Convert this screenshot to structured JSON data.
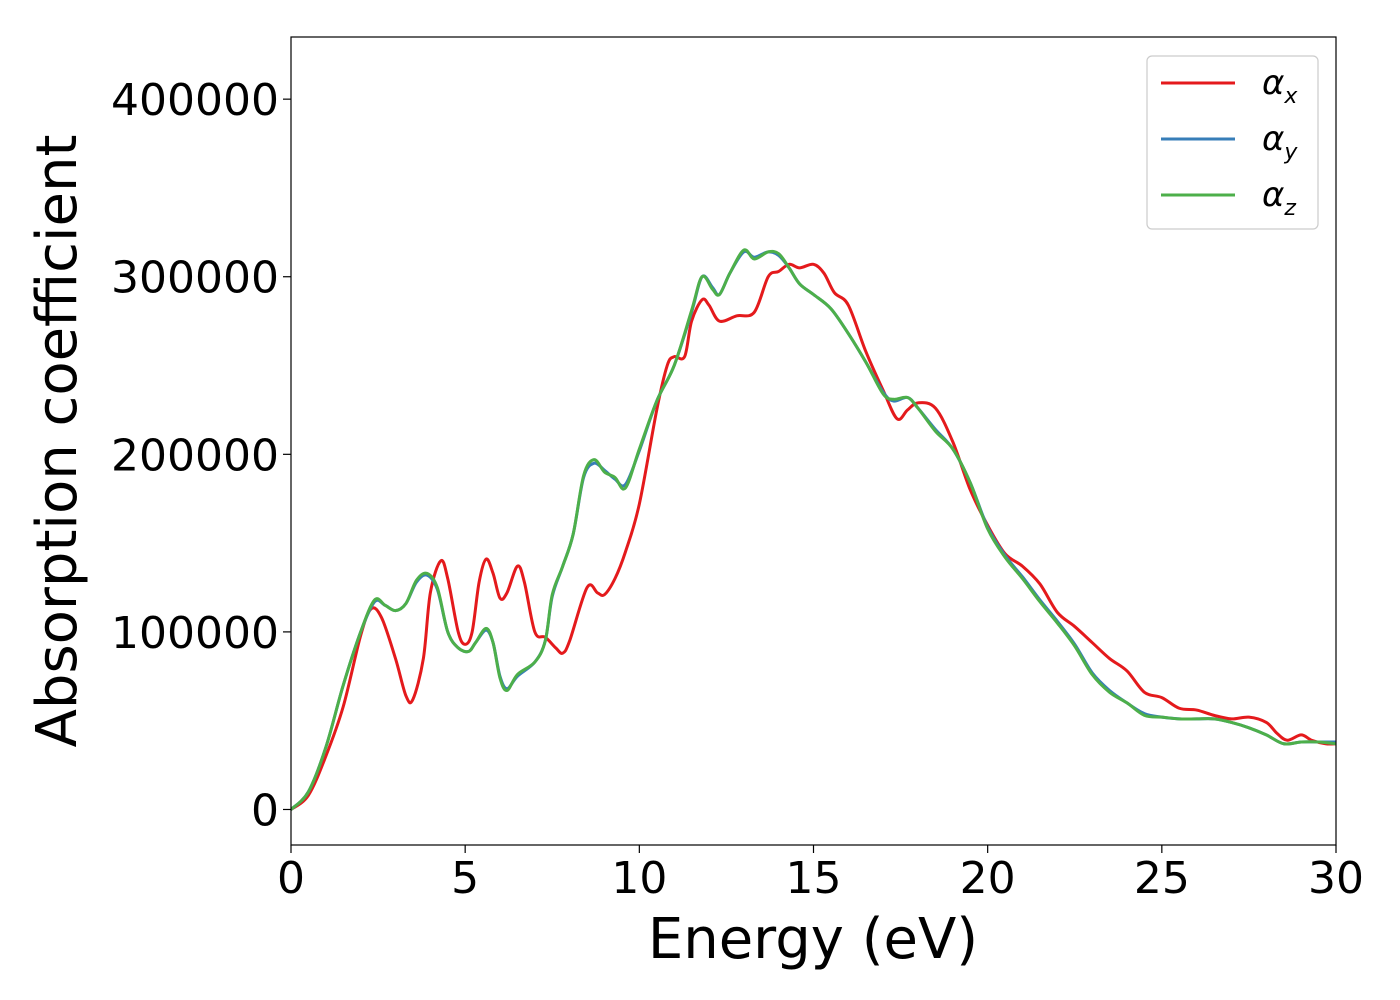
{
  "chart_data": {
    "type": "line",
    "title": "",
    "xlabel": "Energy (eV)",
    "ylabel": "Absorption coefficient",
    "xlim": [
      0,
      30
    ],
    "ylim": [
      -20000,
      435000
    ],
    "x_ticks": [
      0,
      5,
      10,
      15,
      20,
      25,
      30
    ],
    "y_ticks": [
      0,
      100000,
      200000,
      300000,
      400000
    ],
    "x_tick_labels": [
      "0",
      "5",
      "10",
      "15",
      "20",
      "25",
      "30"
    ],
    "y_tick_labels": [
      "0",
      "100000",
      "200000",
      "300000",
      "400000"
    ],
    "grid": false,
    "legend_position": "top-right",
    "series": [
      {
        "name": "x",
        "color": "#e41a1c",
        "points": [
          [
            0,
            0
          ],
          [
            0.5,
            8000
          ],
          [
            1,
            30000
          ],
          [
            1.5,
            58000
          ],
          [
            2,
            98000
          ],
          [
            2.3,
            113000
          ],
          [
            2.6,
            108000
          ],
          [
            3,
            85000
          ],
          [
            3.3,
            64000
          ],
          [
            3.5,
            62000
          ],
          [
            3.8,
            85000
          ],
          [
            4,
            122000
          ],
          [
            4.3,
            140000
          ],
          [
            4.5,
            130000
          ],
          [
            4.8,
            100000
          ],
          [
            5,
            93000
          ],
          [
            5.2,
            100000
          ],
          [
            5.4,
            128000
          ],
          [
            5.6,
            141000
          ],
          [
            5.8,
            133000
          ],
          [
            6,
            119000
          ],
          [
            6.2,
            122000
          ],
          [
            6.5,
            137000
          ],
          [
            6.7,
            128000
          ],
          [
            7,
            100000
          ],
          [
            7.3,
            97000
          ],
          [
            7.6,
            91000
          ],
          [
            7.8,
            88000
          ],
          [
            8,
            95000
          ],
          [
            8.5,
            125000
          ],
          [
            8.8,
            122000
          ],
          [
            9,
            121000
          ],
          [
            9.3,
            130000
          ],
          [
            9.6,
            145000
          ],
          [
            10,
            172000
          ],
          [
            10.5,
            225000
          ],
          [
            10.8,
            250000
          ],
          [
            11,
            255000
          ],
          [
            11.3,
            255000
          ],
          [
            11.5,
            275000
          ],
          [
            11.8,
            287000
          ],
          [
            12,
            284000
          ],
          [
            12.3,
            275000
          ],
          [
            12.8,
            278000
          ],
          [
            13.3,
            280000
          ],
          [
            13.7,
            300000
          ],
          [
            14,
            303000
          ],
          [
            14.3,
            307000
          ],
          [
            14.6,
            305000
          ],
          [
            15,
            307000
          ],
          [
            15.3,
            302000
          ],
          [
            15.6,
            291000
          ],
          [
            16,
            284000
          ],
          [
            16.5,
            258000
          ],
          [
            17,
            236000
          ],
          [
            17.4,
            220000
          ],
          [
            17.7,
            225000
          ],
          [
            18,
            229000
          ],
          [
            18.5,
            226000
          ],
          [
            19,
            207000
          ],
          [
            19.5,
            180000
          ],
          [
            20,
            160000
          ],
          [
            20.5,
            144000
          ],
          [
            21,
            137000
          ],
          [
            21.5,
            127000
          ],
          [
            22,
            111000
          ],
          [
            22.5,
            103000
          ],
          [
            23,
            94000
          ],
          [
            23.5,
            85000
          ],
          [
            24,
            78000
          ],
          [
            24.5,
            66000
          ],
          [
            25,
            63000
          ],
          [
            25.5,
            57000
          ],
          [
            26,
            56000
          ],
          [
            26.5,
            53000
          ],
          [
            27,
            51000
          ],
          [
            27.5,
            52000
          ],
          [
            28,
            49000
          ],
          [
            28.3,
            43000
          ],
          [
            28.6,
            39000
          ],
          [
            29,
            42000
          ],
          [
            29.3,
            39000
          ],
          [
            29.7,
            37000
          ],
          [
            30,
            37000
          ]
        ]
      },
      {
        "name": "y",
        "color": "#377eb8",
        "points": [
          [
            0,
            0
          ],
          [
            0.5,
            10000
          ],
          [
            1,
            35000
          ],
          [
            1.5,
            70000
          ],
          [
            2,
            100000
          ],
          [
            2.4,
            117000
          ],
          [
            2.7,
            115000
          ],
          [
            3,
            112000
          ],
          [
            3.3,
            116000
          ],
          [
            3.6,
            128000
          ],
          [
            3.9,
            132000
          ],
          [
            4.2,
            124000
          ],
          [
            4.5,
            100000
          ],
          [
            4.8,
            91000
          ],
          [
            5.1,
            89000
          ],
          [
            5.3,
            94000
          ],
          [
            5.6,
            101000
          ],
          [
            5.8,
            94000
          ],
          [
            6,
            75000
          ],
          [
            6.2,
            68000
          ],
          [
            6.5,
            75000
          ],
          [
            7,
            83000
          ],
          [
            7.3,
            95000
          ],
          [
            7.5,
            120000
          ],
          [
            7.8,
            137000
          ],
          [
            8.1,
            155000
          ],
          [
            8.4,
            187000
          ],
          [
            8.7,
            195000
          ],
          [
            9,
            191000
          ],
          [
            9.3,
            186000
          ],
          [
            9.6,
            183000
          ],
          [
            10,
            202000
          ],
          [
            10.5,
            230000
          ],
          [
            11,
            250000
          ],
          [
            11.5,
            280000
          ],
          [
            11.8,
            300000
          ],
          [
            12.1,
            294000
          ],
          [
            12.3,
            290000
          ],
          [
            12.6,
            302000
          ],
          [
            13,
            314000
          ],
          [
            13.3,
            311000
          ],
          [
            13.7,
            314000
          ],
          [
            14,
            312000
          ],
          [
            14.3,
            305000
          ],
          [
            14.6,
            296000
          ],
          [
            15,
            290000
          ],
          [
            15.5,
            282000
          ],
          [
            16,
            268000
          ],
          [
            16.5,
            252000
          ],
          [
            17,
            235000
          ],
          [
            17.3,
            230000
          ],
          [
            17.7,
            232000
          ],
          [
            18,
            226000
          ],
          [
            18.5,
            214000
          ],
          [
            19,
            203000
          ],
          [
            19.5,
            184000
          ],
          [
            20,
            159000
          ],
          [
            20.5,
            143000
          ],
          [
            21,
            131000
          ],
          [
            21.5,
            118000
          ],
          [
            22,
            106000
          ],
          [
            22.5,
            93000
          ],
          [
            23,
            77000
          ],
          [
            23.5,
            67000
          ],
          [
            24,
            60000
          ],
          [
            24.5,
            54000
          ],
          [
            25,
            52000
          ],
          [
            25.5,
            51000
          ],
          [
            26,
            51000
          ],
          [
            26.5,
            51000
          ],
          [
            27,
            49000
          ],
          [
            27.5,
            46000
          ],
          [
            28,
            42000
          ],
          [
            28.5,
            37000
          ],
          [
            29,
            38000
          ],
          [
            29.5,
            38000
          ],
          [
            30,
            38000
          ]
        ]
      },
      {
        "name": "z",
        "color": "#4daf4a",
        "points": [
          [
            0,
            0
          ],
          [
            0.5,
            10000
          ],
          [
            1,
            35000
          ],
          [
            1.5,
            70000
          ],
          [
            2,
            100000
          ],
          [
            2.4,
            118000
          ],
          [
            2.7,
            115000
          ],
          [
            3,
            112000
          ],
          [
            3.3,
            116000
          ],
          [
            3.6,
            129000
          ],
          [
            3.9,
            133000
          ],
          [
            4.2,
            125000
          ],
          [
            4.5,
            100000
          ],
          [
            4.8,
            91000
          ],
          [
            5.1,
            89000
          ],
          [
            5.3,
            94000
          ],
          [
            5.6,
            102000
          ],
          [
            5.8,
            94000
          ],
          [
            6,
            74000
          ],
          [
            6.2,
            67000
          ],
          [
            6.5,
            76000
          ],
          [
            7,
            83000
          ],
          [
            7.3,
            95000
          ],
          [
            7.5,
            121000
          ],
          [
            7.8,
            137000
          ],
          [
            8.1,
            155000
          ],
          [
            8.4,
            188000
          ],
          [
            8.7,
            197000
          ],
          [
            9,
            190000
          ],
          [
            9.3,
            187000
          ],
          [
            9.6,
            181000
          ],
          [
            10,
            203000
          ],
          [
            10.5,
            230000
          ],
          [
            11,
            250000
          ],
          [
            11.5,
            281000
          ],
          [
            11.8,
            300000
          ],
          [
            12.1,
            293000
          ],
          [
            12.3,
            290000
          ],
          [
            12.6,
            302000
          ],
          [
            13,
            315000
          ],
          [
            13.3,
            310000
          ],
          [
            13.7,
            314000
          ],
          [
            14,
            313000
          ],
          [
            14.3,
            305000
          ],
          [
            14.6,
            296000
          ],
          [
            15,
            290000
          ],
          [
            15.5,
            282000
          ],
          [
            16,
            268000
          ],
          [
            16.5,
            252000
          ],
          [
            17,
            234000
          ],
          [
            17.3,
            231000
          ],
          [
            17.7,
            232000
          ],
          [
            18,
            226000
          ],
          [
            18.5,
            213000
          ],
          [
            19,
            203000
          ],
          [
            19.5,
            184000
          ],
          [
            20,
            158000
          ],
          [
            20.5,
            142000
          ],
          [
            21,
            130000
          ],
          [
            21.5,
            117000
          ],
          [
            22,
            105000
          ],
          [
            22.5,
            92000
          ],
          [
            23,
            76000
          ],
          [
            23.5,
            66000
          ],
          [
            24,
            60000
          ],
          [
            24.5,
            53000
          ],
          [
            25,
            52000
          ],
          [
            25.5,
            51000
          ],
          [
            26,
            51000
          ],
          [
            26.5,
            51000
          ],
          [
            27,
            49000
          ],
          [
            27.5,
            46000
          ],
          [
            28,
            42000
          ],
          [
            28.5,
            37000
          ],
          [
            29,
            38000
          ],
          [
            29.5,
            38000
          ],
          [
            30,
            37000
          ]
        ]
      }
    ]
  }
}
